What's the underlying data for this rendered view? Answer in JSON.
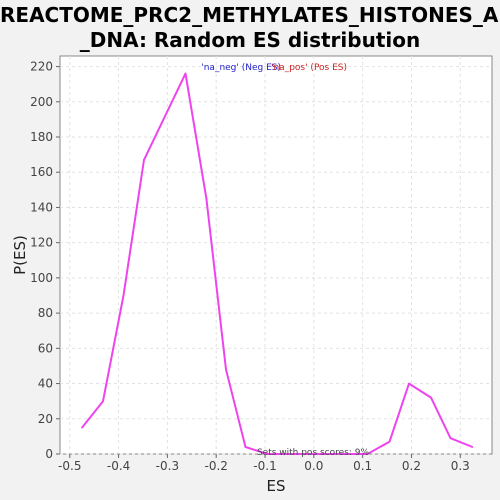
{
  "chart_data": {
    "type": "line",
    "title_lines": [
      "REACTOME_PRC2_METHYLATES_HISTONES_AND",
      "_DNA: Random ES distribution"
    ],
    "xlabel": "ES",
    "ylabel": "P(ES)",
    "xlim": [
      -0.52,
      0.365
    ],
    "ylim": [
      0,
      226
    ],
    "x_ticks": [
      "-0.5",
      "-0.4",
      "-0.3",
      "-0.2",
      "-0.1",
      "0.0",
      "0.1",
      "0.2",
      "0.3"
    ],
    "x_tick_values": [
      -0.5,
      -0.4,
      -0.3,
      -0.2,
      -0.1,
      0.0,
      0.1,
      0.2,
      0.3
    ],
    "y_ticks": [
      "0",
      "20",
      "40",
      "60",
      "80",
      "100",
      "120",
      "140",
      "160",
      "180",
      "200",
      "220"
    ],
    "y_tick_values": [
      0,
      20,
      40,
      60,
      80,
      100,
      120,
      140,
      160,
      180,
      200,
      220
    ],
    "grid": true,
    "legend": [
      {
        "label": "'na_neg' (Neg ES)",
        "color": "#2222cc"
      },
      {
        "label": "'na_pos' (Pos ES)",
        "color": "#cc2222"
      }
    ],
    "annotation": "Sets with pos scores: 9%",
    "series": [
      {
        "color": "#ee44ee",
        "x": [
          -0.475,
          -0.432,
          -0.39,
          -0.348,
          -0.263,
          -0.22,
          -0.18,
          -0.14,
          -0.095,
          0.11,
          0.155,
          0.195,
          0.24,
          0.28,
          0.325
        ],
        "y": [
          15,
          30,
          90,
          167,
          216,
          145,
          48,
          4,
          0,
          0,
          7,
          40,
          32,
          9,
          4
        ]
      }
    ]
  }
}
